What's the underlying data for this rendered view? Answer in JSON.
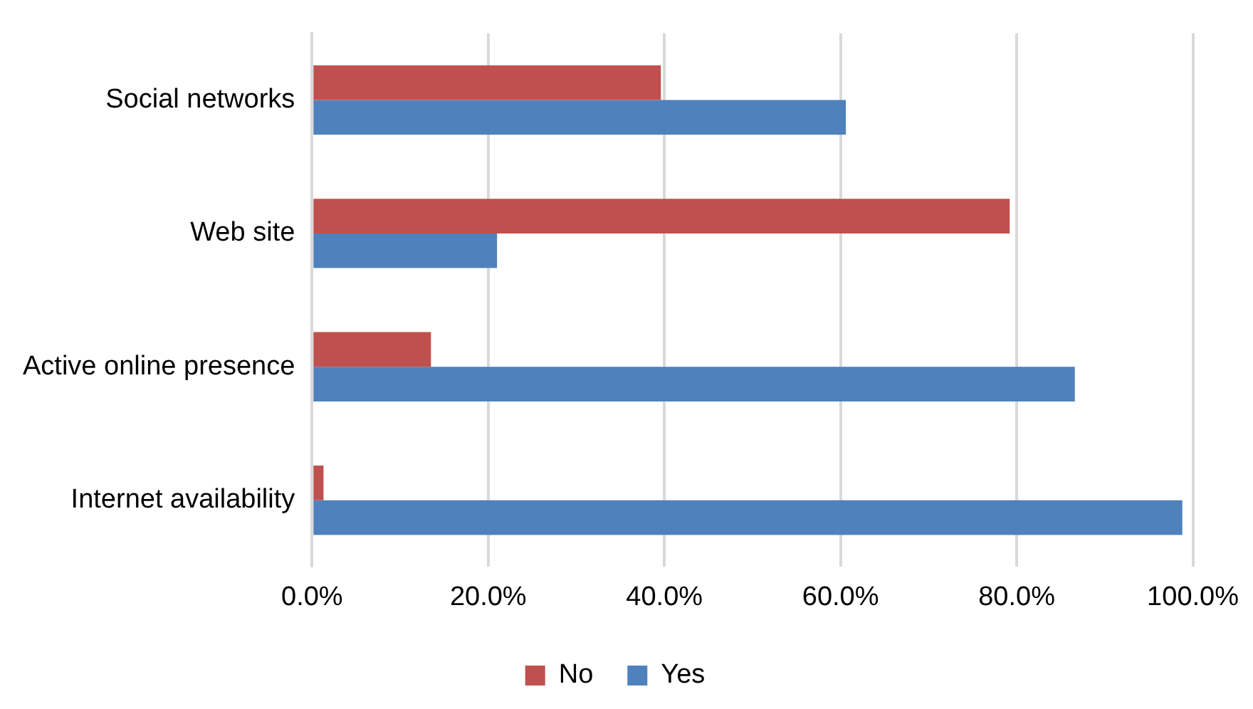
{
  "chart_data": {
    "type": "bar",
    "orientation": "horizontal",
    "categories": [
      "Social networks",
      "Web site",
      "Active online presence",
      "Internet availability"
    ],
    "series": [
      {
        "name": "No",
        "color": "#c0504d",
        "values": [
          39.6,
          79.2,
          13.5,
          1.3
        ]
      },
      {
        "name": "Yes",
        "color": "#4f81bd",
        "values": [
          60.6,
          21.0,
          86.6,
          98.8
        ]
      }
    ],
    "xlim": [
      0,
      100
    ],
    "xticks": [
      {
        "value": 0,
        "label": "0.0%"
      },
      {
        "value": 20,
        "label": "20.0%"
      },
      {
        "value": 40,
        "label": "40.0%"
      },
      {
        "value": 60,
        "label": "60.0%"
      },
      {
        "value": 80,
        "label": "80.0%"
      },
      {
        "value": 100,
        "label": "100.0%"
      }
    ],
    "grid": "x",
    "legend": "bottom"
  }
}
